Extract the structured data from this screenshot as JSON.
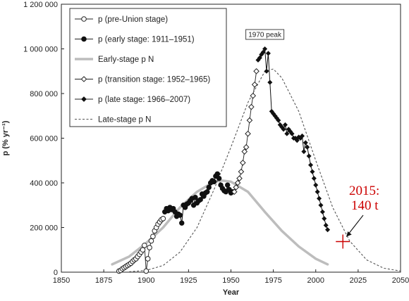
{
  "chart_data": {
    "type": "line",
    "xlabel": "Year",
    "ylabel": "p (% yr⁻¹)",
    "xlim": [
      1850,
      2050
    ],
    "ylim": [
      0,
      1200000
    ],
    "xticks": [
      1850,
      1875,
      1900,
      1925,
      1950,
      1975,
      2000,
      2025,
      2050
    ],
    "yticks": [
      0,
      200000,
      400000,
      600000,
      800000,
      1000000,
      1200000
    ],
    "xtick_labels": [
      "1850",
      "1875",
      "1900",
      "1925",
      "1950",
      "1975",
      "2000",
      "2025",
      "2050"
    ],
    "ytick_labels": [
      "0",
      "200 000",
      "400 000",
      "600 000",
      "800 000",
      "1 000 000",
      "1 200 000"
    ],
    "legend": {
      "position": "top-left",
      "entries": [
        {
          "label": "p (pre-Union stage)",
          "style": "open-circle-line"
        },
        {
          "label": "p (early stage: 1911–1951)",
          "style": "filled-circle-line"
        },
        {
          "label": "Early-stage p N",
          "style": "thick-gray-line"
        },
        {
          "label": "p (transition stage: 1952–1965)",
          "style": "open-diamond-line"
        },
        {
          "label": "p (late stage: 1966–2007)",
          "style": "filled-diamond-line"
        },
        {
          "label": "Late-stage p N",
          "style": "dashed-line"
        }
      ]
    },
    "series": [
      {
        "name": "p (pre-Union stage)",
        "marker": "open-circle",
        "x": [
          1884,
          1885,
          1886,
          1887,
          1888,
          1889,
          1890,
          1891,
          1892,
          1893,
          1894,
          1895,
          1896,
          1897,
          1898,
          1899,
          1900,
          1901,
          1902,
          1903,
          1904,
          1905,
          1906,
          1907,
          1908,
          1909,
          1910
        ],
        "y": [
          5000,
          8000,
          15000,
          20000,
          25000,
          30000,
          35000,
          40000,
          48000,
          55000,
          60000,
          70000,
          80000,
          90000,
          100000,
          120000,
          5000,
          60000,
          110000,
          140000,
          160000,
          185000,
          200000,
          215000,
          225000,
          235000,
          240000
        ]
      },
      {
        "name": "p (early stage: 1911–1951)",
        "marker": "filled-circle",
        "x": [
          1911,
          1912,
          1913,
          1914,
          1915,
          1916,
          1917,
          1918,
          1919,
          1920,
          1921,
          1922,
          1923,
          1924,
          1925,
          1926,
          1927,
          1928,
          1929,
          1930,
          1931,
          1932,
          1933,
          1934,
          1935,
          1936,
          1937,
          1938,
          1939,
          1940,
          1941,
          1942,
          1943,
          1944,
          1945,
          1946,
          1947,
          1948,
          1949,
          1950,
          1951
        ],
        "y": [
          270000,
          285000,
          275000,
          290000,
          280000,
          285000,
          270000,
          250000,
          260000,
          255000,
          220000,
          300000,
          290000,
          305000,
          310000,
          320000,
          330000,
          300000,
          335000,
          310000,
          320000,
          325000,
          350000,
          340000,
          355000,
          360000,
          380000,
          400000,
          410000,
          405000,
          430000,
          440000,
          420000,
          390000,
          375000,
          365000,
          360000,
          390000,
          370000,
          355000,
          360000
        ]
      },
      {
        "name": "Early-stage p N",
        "style": "thick-gray",
        "x": [
          1880,
          1890,
          1900,
          1910,
          1920,
          1930,
          1940,
          1945,
          1950,
          1960,
          1970,
          1980,
          1990,
          2000,
          2007
        ],
        "y": [
          35000,
          70000,
          130000,
          200000,
          290000,
          360000,
          405000,
          410000,
          405000,
          360000,
          270000,
          185000,
          115000,
          60000,
          35000
        ]
      },
      {
        "name": "p (transition stage: 1952–1965)",
        "marker": "open-diamond",
        "x": [
          1952,
          1953,
          1954,
          1955,
          1956,
          1957,
          1958,
          1959,
          1960,
          1961,
          1962,
          1963,
          1964,
          1965
        ],
        "y": [
          360000,
          380000,
          400000,
          420000,
          450000,
          490000,
          540000,
          560000,
          620000,
          680000,
          740000,
          790000,
          840000,
          900000
        ]
      },
      {
        "name": "p (late stage: 1966–2007)",
        "marker": "filled-diamond",
        "x": [
          1966,
          1967,
          1968,
          1969,
          1970,
          1971,
          1972,
          1973,
          1974,
          1975,
          1976,
          1977,
          1978,
          1979,
          1980,
          1981,
          1982,
          1983,
          1984,
          1985,
          1986,
          1987,
          1988,
          1989,
          1990,
          1991,
          1992,
          1993,
          1994,
          1995,
          1996,
          1997,
          1998,
          1999,
          2000,
          2001,
          2002,
          2003,
          2004,
          2005,
          2006,
          2007
        ],
        "y": [
          950000,
          960000,
          975000,
          985000,
          1000000,
          900000,
          980000,
          850000,
          720000,
          710000,
          700000,
          690000,
          680000,
          660000,
          650000,
          640000,
          660000,
          620000,
          640000,
          630000,
          620000,
          600000,
          600000,
          590000,
          605000,
          600000,
          610000,
          540000,
          580000,
          560000,
          520000,
          480000,
          450000,
          420000,
          390000,
          360000,
          330000,
          300000,
          270000,
          240000,
          210000,
          190000
        ]
      },
      {
        "name": "Late-stage p N",
        "style": "dashed",
        "x": [
          1890,
          1900,
          1910,
          1920,
          1930,
          1940,
          1950,
          1960,
          1970,
          1975,
          1980,
          1990,
          2000,
          2010,
          2020,
          2030,
          2040,
          2050
        ],
        "y": [
          2000,
          8000,
          30000,
          90000,
          200000,
          370000,
          560000,
          760000,
          900000,
          910000,
          870000,
          720000,
          500000,
          290000,
          140000,
          55000,
          18000,
          5000
        ]
      }
    ],
    "annotations": [
      {
        "text": "1970 peak",
        "x": 1970,
        "y": 1000000
      },
      {
        "text": "2015:",
        "x": 2016,
        "y": 137000
      },
      {
        "text": "140 t",
        "x": 2016,
        "y": 137000
      }
    ],
    "grid": false
  },
  "colors": {
    "annotation_red": "#cc0000",
    "early_pn_gray": "#bdbdbd",
    "ink": "#111111"
  }
}
